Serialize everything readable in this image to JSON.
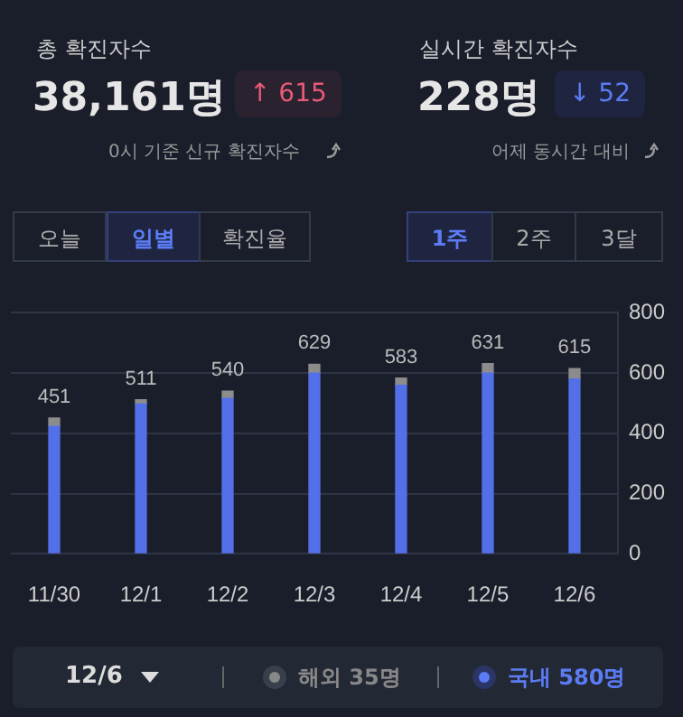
{
  "chart_data": {
    "type": "bar",
    "stacked": true,
    "categories": [
      "11/30",
      "12/1",
      "12/2",
      "12/3",
      "12/4",
      "12/5",
      "12/6"
    ],
    "series": [
      {
        "color": "#5470e8",
        "values": [
          423,
          497,
          516,
          600,
          559,
          600,
          580
        ]
      },
      {
        "color": "#8c8c8c",
        "values": [
          28,
          14,
          24,
          29,
          24,
          31,
          35
        ]
      }
    ],
    "totals": [
      "451",
      "511",
      "540",
      "629",
      "583",
      "631",
      "615"
    ],
    "ylim": [
      0,
      800
    ],
    "yticks": [
      0,
      200,
      400,
      600,
      800
    ],
    "grid": "y",
    "legend": false,
    "annotations": [
      "총 확진자수",
      "38,161명",
      "↑ 615",
      "0시 기준 신규 확진자수",
      "실시간 확진자수",
      "228명",
      "↓ 52",
      "어제 동시간 대비",
      "오늘",
      "일별",
      "확진율",
      "1주",
      "2주",
      "3달",
      "12/6",
      "해외 35명",
      "국내 580명"
    ]
  }
}
